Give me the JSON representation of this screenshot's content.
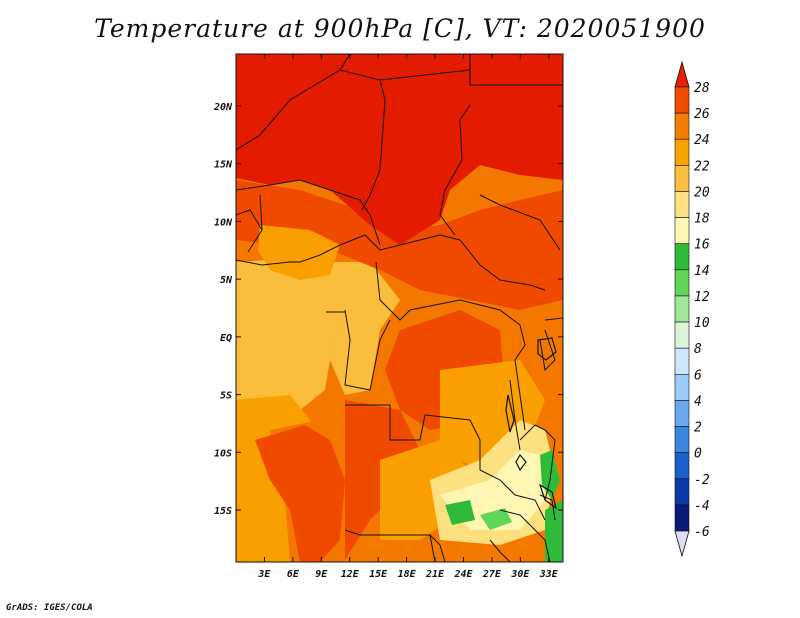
{
  "title": "Temperature at 900hPa [C], VT: 2020051900",
  "credit": "GrADS: IGES/COLA",
  "map": {
    "lon_range": [
      0,
      34.5
    ],
    "lat_range": [
      -19.5,
      24.5
    ],
    "lon_ticks": [
      {
        "lon": 3,
        "label": "3E"
      },
      {
        "lon": 6,
        "label": "6E"
      },
      {
        "lon": 9,
        "label": "9E"
      },
      {
        "lon": 12,
        "label": "12E"
      },
      {
        "lon": 15,
        "label": "15E"
      },
      {
        "lon": 18,
        "label": "18E"
      },
      {
        "lon": 21,
        "label": "21E"
      },
      {
        "lon": 24,
        "label": "24E"
      },
      {
        "lon": 27,
        "label": "27E"
      },
      {
        "lon": 30,
        "label": "30E"
      },
      {
        "lon": 33,
        "label": "33E"
      }
    ],
    "lat_ticks": [
      {
        "lat": 20,
        "label": "20N"
      },
      {
        "lat": 15,
        "label": "15N"
      },
      {
        "lat": 10,
        "label": "10N"
      },
      {
        "lat": 5,
        "label": "5N"
      },
      {
        "lat": 0,
        "label": "EQ"
      },
      {
        "lat": -5,
        "label": "5S"
      },
      {
        "lat": -10,
        "label": "10S"
      },
      {
        "lat": -15,
        "label": "15S"
      }
    ]
  },
  "colorbar": {
    "levels": [
      {
        "label": "28"
      },
      {
        "label": "26"
      },
      {
        "label": "24"
      },
      {
        "label": "22"
      },
      {
        "label": "20"
      },
      {
        "label": "18"
      },
      {
        "label": "16"
      },
      {
        "label": "14"
      },
      {
        "label": "12"
      },
      {
        "label": "10"
      },
      {
        "label": "8"
      },
      {
        "label": "6"
      },
      {
        "label": "4"
      },
      {
        "label": "2"
      },
      {
        "label": "0"
      },
      {
        "label": "-2"
      },
      {
        "label": "-4"
      },
      {
        "label": "-6"
      }
    ],
    "colors_top_to_bottom": [
      "#e81e00",
      "#f04d00",
      "#f47c00",
      "#f9a200",
      "#fbbf40",
      "#fde080",
      "#fef7b4",
      "#2fbb3a",
      "#5fd55a",
      "#a2e89a",
      "#dcf5d8",
      "#cfe6ff",
      "#9ccbf7",
      "#6aa9ef",
      "#3b85e3",
      "#1c5fce",
      "#0d3aa8",
      "#0b1a78",
      "#dcdcf4"
    ]
  },
  "field_colors": {
    "c28": "#e31b00",
    "c26": "#ef4a00",
    "c24": "#f47800",
    "c22": "#f9a000",
    "c20": "#fbbe3c",
    "c18": "#fde080",
    "c16": "#fef7b4",
    "c14": "#2fbb3a",
    "c12": "#5fd55a"
  }
}
